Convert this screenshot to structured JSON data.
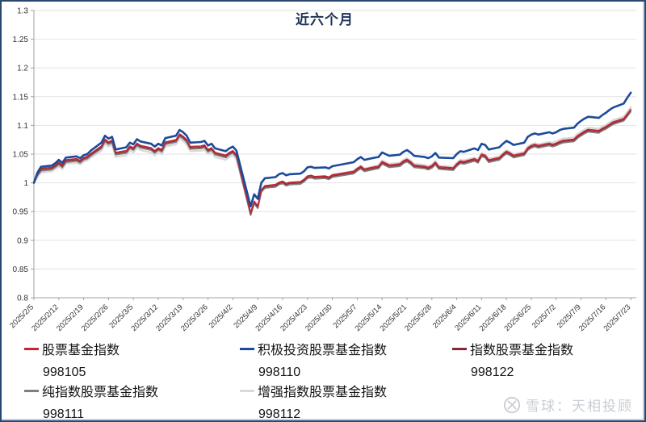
{
  "page": {
    "title": "近六个月"
  },
  "watermark": {
    "logo": "xueqiu-logo",
    "text": "雪球：天相投顾"
  },
  "chart_data": {
    "type": "line",
    "title": "近六个月",
    "xlabel": "",
    "ylabel": "",
    "ylim": [
      0.8,
      1.3
    ],
    "ytick_step": 0.05,
    "yticks": [
      "1.3",
      "1.25",
      "1.2",
      "1.15",
      "1.1",
      "1.05",
      "1",
      "0.95",
      "0.9",
      "0.85",
      "0.8"
    ],
    "grid": "horizontal",
    "legend_position": "bottom",
    "axis_color": "#A0A0A0",
    "grid_color": "#E2E2E2",
    "tick_label_color": "#333333",
    "x_tick_labels": [
      "2025/2/5",
      "2025/2/12",
      "2025/2/19",
      "2025/2/26",
      "2025/3/5",
      "2025/3/12",
      "2025/3/19",
      "2025/3/26",
      "2025/4/2",
      "2025/4/9",
      "2025/4/16",
      "2025/4/23",
      "2025/4/30",
      "2025/5/7",
      "2025/5/14",
      "2025/5/21",
      "2025/5/28",
      "2025/6/4",
      "2025/6/11",
      "2025/6/18",
      "2025/6/25",
      "2025/7/2",
      "2025/7/9",
      "2025/7/16",
      "2025/7/23"
    ],
    "x_dates": [
      "2025/2/5",
      "2025/2/6",
      "2025/2/7",
      "2025/2/10",
      "2025/2/11",
      "2025/2/12",
      "2025/2/13",
      "2025/2/14",
      "2025/2/17",
      "2025/2/18",
      "2025/2/19",
      "2025/2/20",
      "2025/2/21",
      "2025/2/24",
      "2025/2/25",
      "2025/2/26",
      "2025/2/27",
      "2025/2/28",
      "2025/3/3",
      "2025/3/4",
      "2025/3/5",
      "2025/3/6",
      "2025/3/7",
      "2025/3/10",
      "2025/3/11",
      "2025/3/12",
      "2025/3/13",
      "2025/3/14",
      "2025/3/17",
      "2025/3/18",
      "2025/3/19",
      "2025/3/20",
      "2025/3/21",
      "2025/3/24",
      "2025/3/25",
      "2025/3/26",
      "2025/3/27",
      "2025/3/28",
      "2025/3/31",
      "2025/4/1",
      "2025/4/2",
      "2025/4/3",
      "2025/4/7",
      "2025/4/8",
      "2025/4/9",
      "2025/4/10",
      "2025/4/11",
      "2025/4/14",
      "2025/4/15",
      "2025/4/16",
      "2025/4/17",
      "2025/4/18",
      "2025/4/21",
      "2025/4/22",
      "2025/4/23",
      "2025/4/24",
      "2025/4/25",
      "2025/4/28",
      "2025/4/29",
      "2025/4/30",
      "2025/5/6",
      "2025/5/7",
      "2025/5/8",
      "2025/5/9",
      "2025/5/12",
      "2025/5/13",
      "2025/5/14",
      "2025/5/15",
      "2025/5/16",
      "2025/5/19",
      "2025/5/20",
      "2025/5/21",
      "2025/5/22",
      "2025/5/23",
      "2025/5/26",
      "2025/5/27",
      "2025/5/28",
      "2025/5/29",
      "2025/5/30",
      "2025/6/3",
      "2025/6/4",
      "2025/6/5",
      "2025/6/6",
      "2025/6/9",
      "2025/6/10",
      "2025/6/11",
      "2025/6/12",
      "2025/6/13",
      "2025/6/16",
      "2025/6/17",
      "2025/6/18",
      "2025/6/19",
      "2025/6/20",
      "2025/6/23",
      "2025/6/24",
      "2025/6/25",
      "2025/6/26",
      "2025/6/27",
      "2025/6/30",
      "2025/7/1",
      "2025/7/2",
      "2025/7/3",
      "2025/7/4",
      "2025/7/7",
      "2025/7/8",
      "2025/7/9",
      "2025/7/10",
      "2025/7/11",
      "2025/7/14",
      "2025/7/15",
      "2025/7/16",
      "2025/7/17",
      "2025/7/18",
      "2025/7/21",
      "2025/7/22",
      "2025/7/23"
    ],
    "z_order": [
      4,
      3,
      2,
      0,
      1
    ],
    "series": [
      {
        "name": "股票基金指数",
        "code": "998105",
        "color": "#C22535",
        "width": 1.6,
        "values": [
          1.0,
          1.016,
          1.025,
          1.027,
          1.031,
          1.036,
          1.031,
          1.04,
          1.042,
          1.039,
          1.044,
          1.046,
          1.051,
          1.064,
          1.076,
          1.071,
          1.074,
          1.053,
          1.056,
          1.064,
          1.061,
          1.069,
          1.065,
          1.061,
          1.056,
          1.061,
          1.058,
          1.071,
          1.075,
          1.085,
          1.081,
          1.075,
          1.063,
          1.064,
          1.066,
          1.058,
          1.061,
          1.053,
          1.048,
          1.053,
          1.056,
          1.049,
          0.948,
          0.968,
          0.96,
          0.988,
          0.995,
          0.997,
          1.001,
          1.003,
          0.999,
          1.001,
          1.002,
          1.006,
          1.012,
          1.013,
          1.011,
          1.012,
          1.01,
          1.014,
          1.02,
          1.025,
          1.029,
          1.024,
          1.028,
          1.029,
          1.037,
          1.034,
          1.031,
          1.033,
          1.038,
          1.041,
          1.037,
          1.031,
          1.029,
          1.027,
          1.03,
          1.036,
          1.028,
          1.026,
          1.033,
          1.038,
          1.037,
          1.042,
          1.039,
          1.05,
          1.048,
          1.04,
          1.044,
          1.05,
          1.055,
          1.052,
          1.048,
          1.052,
          1.061,
          1.065,
          1.067,
          1.065,
          1.069,
          1.067,
          1.069,
          1.072,
          1.074,
          1.076,
          1.082,
          1.086,
          1.09,
          1.093,
          1.091,
          1.095,
          1.098,
          1.102,
          1.106,
          1.112,
          1.12,
          1.128
        ]
      },
      {
        "name": "积极投资股票基金指数",
        "code": "998110",
        "color": "#1B4B9B",
        "width": 2.6,
        "values": [
          1.0,
          1.018,
          1.028,
          1.03,
          1.034,
          1.04,
          1.035,
          1.044,
          1.046,
          1.043,
          1.048,
          1.05,
          1.056,
          1.07,
          1.082,
          1.077,
          1.08,
          1.058,
          1.062,
          1.07,
          1.067,
          1.076,
          1.072,
          1.068,
          1.063,
          1.068,
          1.065,
          1.078,
          1.082,
          1.092,
          1.088,
          1.082,
          1.07,
          1.071,
          1.073,
          1.065,
          1.068,
          1.06,
          1.055,
          1.06,
          1.063,
          1.056,
          0.959,
          0.98,
          0.972,
          1.0,
          1.008,
          1.01,
          1.015,
          1.017,
          1.013,
          1.015,
          1.016,
          1.02,
          1.027,
          1.028,
          1.026,
          1.027,
          1.025,
          1.029,
          1.036,
          1.041,
          1.045,
          1.04,
          1.044,
          1.045,
          1.053,
          1.05,
          1.047,
          1.049,
          1.054,
          1.057,
          1.053,
          1.047,
          1.045,
          1.043,
          1.046,
          1.052,
          1.044,
          1.043,
          1.05,
          1.055,
          1.054,
          1.06,
          1.057,
          1.068,
          1.066,
          1.058,
          1.062,
          1.068,
          1.073,
          1.07,
          1.066,
          1.07,
          1.08,
          1.084,
          1.086,
          1.084,
          1.088,
          1.086,
          1.088,
          1.092,
          1.094,
          1.096,
          1.103,
          1.108,
          1.112,
          1.115,
          1.113,
          1.118,
          1.122,
          1.127,
          1.131,
          1.138,
          1.148,
          1.157
        ]
      },
      {
        "name": "指数股票基金指数",
        "code": "998122",
        "color": "#8B2630",
        "width": 1.2,
        "values": [
          1.0,
          1.014,
          1.023,
          1.025,
          1.029,
          1.034,
          1.029,
          1.038,
          1.04,
          1.037,
          1.042,
          1.044,
          1.049,
          1.062,
          1.074,
          1.069,
          1.072,
          1.051,
          1.054,
          1.062,
          1.059,
          1.067,
          1.063,
          1.059,
          1.054,
          1.059,
          1.056,
          1.069,
          1.073,
          1.083,
          1.079,
          1.073,
          1.061,
          1.062,
          1.064,
          1.056,
          1.059,
          1.051,
          1.046,
          1.051,
          1.054,
          1.047,
          0.946,
          0.966,
          0.958,
          0.986,
          0.993,
          0.995,
          0.999,
          1.001,
          0.997,
          0.999,
          1.0,
          1.004,
          1.01,
          1.011,
          1.009,
          1.01,
          1.008,
          1.012,
          1.018,
          1.023,
          1.027,
          1.022,
          1.026,
          1.027,
          1.035,
          1.032,
          1.029,
          1.031,
          1.036,
          1.039,
          1.035,
          1.029,
          1.027,
          1.025,
          1.028,
          1.034,
          1.026,
          1.024,
          1.031,
          1.036,
          1.035,
          1.04,
          1.037,
          1.048,
          1.046,
          1.038,
          1.042,
          1.048,
          1.053,
          1.05,
          1.046,
          1.05,
          1.059,
          1.063,
          1.065,
          1.063,
          1.067,
          1.065,
          1.067,
          1.07,
          1.072,
          1.074,
          1.08,
          1.084,
          1.088,
          1.091,
          1.089,
          1.093,
          1.096,
          1.1,
          1.104,
          1.11,
          1.118,
          1.127
        ]
      },
      {
        "name": "纯指数股票基金指数",
        "code": "998111",
        "color": "#7F7F7F",
        "width": 2.0,
        "values": [
          1.0,
          1.013,
          1.021,
          1.023,
          1.027,
          1.032,
          1.027,
          1.036,
          1.038,
          1.035,
          1.04,
          1.042,
          1.047,
          1.06,
          1.072,
          1.067,
          1.07,
          1.049,
          1.052,
          1.06,
          1.057,
          1.065,
          1.061,
          1.057,
          1.052,
          1.057,
          1.054,
          1.067,
          1.071,
          1.081,
          1.077,
          1.071,
          1.059,
          1.06,
          1.062,
          1.054,
          1.057,
          1.049,
          1.044,
          1.049,
          1.052,
          1.045,
          0.944,
          0.964,
          0.956,
          0.984,
          0.991,
          0.993,
          0.997,
          0.999,
          0.995,
          0.997,
          0.998,
          1.002,
          1.008,
          1.009,
          1.007,
          1.008,
          1.006,
          1.01,
          1.016,
          1.021,
          1.025,
          1.02,
          1.024,
          1.025,
          1.033,
          1.03,
          1.027,
          1.029,
          1.034,
          1.037,
          1.033,
          1.027,
          1.025,
          1.023,
          1.026,
          1.032,
          1.024,
          1.022,
          1.029,
          1.034,
          1.033,
          1.038,
          1.035,
          1.046,
          1.044,
          1.036,
          1.04,
          1.046,
          1.051,
          1.048,
          1.044,
          1.048,
          1.057,
          1.061,
          1.063,
          1.061,
          1.065,
          1.063,
          1.065,
          1.068,
          1.07,
          1.072,
          1.078,
          1.082,
          1.086,
          1.089,
          1.087,
          1.091,
          1.094,
          1.098,
          1.102,
          1.108,
          1.116,
          1.124
        ]
      },
      {
        "name": "增强指数股票基金指数",
        "code": "998112",
        "color": "#D9D9D9",
        "width": 2.4,
        "values": [
          1.0,
          1.01,
          1.018,
          1.02,
          1.024,
          1.029,
          1.024,
          1.033,
          1.035,
          1.032,
          1.037,
          1.039,
          1.044,
          1.056,
          1.068,
          1.063,
          1.066,
          1.045,
          1.048,
          1.056,
          1.053,
          1.061,
          1.057,
          1.053,
          1.048,
          1.053,
          1.05,
          1.063,
          1.067,
          1.077,
          1.073,
          1.067,
          1.055,
          1.056,
          1.058,
          1.05,
          1.053,
          1.045,
          1.04,
          1.045,
          1.048,
          1.041,
          0.947,
          0.966,
          0.958,
          0.986,
          0.993,
          0.995,
          0.999,
          1.001,
          0.997,
          0.999,
          1.001,
          1.005,
          1.011,
          1.012,
          1.01,
          1.011,
          1.009,
          1.013,
          1.021,
          1.026,
          1.03,
          1.025,
          1.029,
          1.031,
          1.039,
          1.036,
          1.033,
          1.035,
          1.04,
          1.043,
          1.039,
          1.033,
          1.031,
          1.029,
          1.032,
          1.038,
          1.03,
          1.028,
          1.035,
          1.04,
          1.039,
          1.044,
          1.041,
          1.052,
          1.05,
          1.042,
          1.046,
          1.052,
          1.057,
          1.054,
          1.05,
          1.054,
          1.063,
          1.067,
          1.069,
          1.067,
          1.071,
          1.07,
          1.072,
          1.075,
          1.077,
          1.079,
          1.085,
          1.089,
          1.093,
          1.096,
          1.094,
          1.098,
          1.101,
          1.105,
          1.109,
          1.115,
          1.123,
          1.132
        ]
      }
    ]
  }
}
